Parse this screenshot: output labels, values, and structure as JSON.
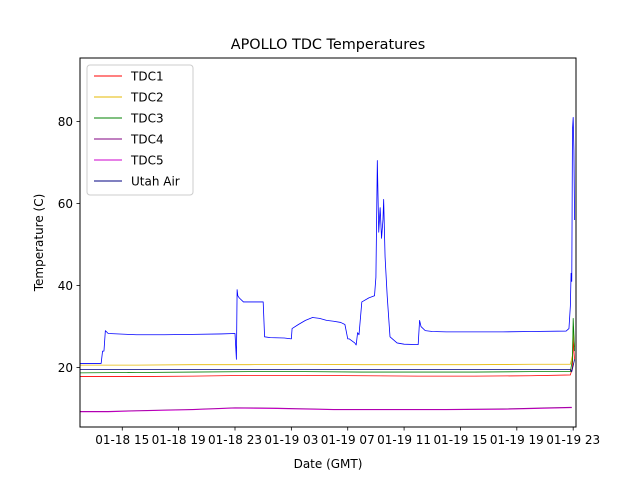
{
  "chart_data": {
    "type": "line",
    "title": "APOLLO TDC Temperatures",
    "xlabel": "Date (GMT)",
    "ylabel": "Temperature (C)",
    "xlim": [
      12.0,
      47.2
    ],
    "ylim": [
      5.5,
      95.5
    ],
    "x_units": "hours since 01-18 00:00 GMT",
    "x_ticks": [
      {
        "value": 15,
        "label": "01-18 15"
      },
      {
        "value": 19,
        "label": "01-18 19"
      },
      {
        "value": 23,
        "label": "01-18 23"
      },
      {
        "value": 27,
        "label": "01-19 03"
      },
      {
        "value": 31,
        "label": "01-19 07"
      },
      {
        "value": 35,
        "label": "01-19 11"
      },
      {
        "value": 39,
        "label": "01-19 15"
      },
      {
        "value": 43,
        "label": "01-19 19"
      },
      {
        "value": 47,
        "label": "01-19 23"
      }
    ],
    "y_ticks": [
      {
        "value": 20,
        "label": "20"
      },
      {
        "value": 40,
        "label": "40"
      },
      {
        "value": 60,
        "label": "60"
      },
      {
        "value": 80,
        "label": "80"
      }
    ],
    "legend_position": "top-left",
    "series": [
      {
        "name": "TDC1",
        "color": "#ff0000",
        "x": [
          12.0,
          16.0,
          20.0,
          24.0,
          28.0,
          32.0,
          36.0,
          40.0,
          44.0,
          46.8,
          46.95,
          47.0,
          47.05,
          47.1
        ],
        "y": [
          17.8,
          17.8,
          17.9,
          18.1,
          18.1,
          18.0,
          17.9,
          17.9,
          18.0,
          18.2,
          20.0,
          28.0,
          24.0,
          22.0
        ]
      },
      {
        "name": "TDC2",
        "color": "#e6b800",
        "x": [
          12.0,
          16.0,
          20.0,
          24.0,
          28.0,
          32.0,
          36.0,
          40.0,
          44.0,
          46.8,
          46.95,
          47.0,
          47.05,
          47.1
        ],
        "y": [
          20.6,
          20.6,
          20.7,
          20.7,
          20.8,
          20.7,
          20.7,
          20.7,
          20.8,
          20.8,
          23.0,
          30.0,
          27.0,
          25.0
        ]
      },
      {
        "name": "TDC3",
        "color": "#008000",
        "x": [
          12.0,
          16.0,
          20.0,
          24.0,
          28.0,
          32.0,
          36.0,
          40.0,
          44.0,
          46.8,
          46.95,
          47.0,
          47.05,
          47.1
        ],
        "y": [
          18.7,
          18.8,
          18.9,
          19.0,
          19.0,
          18.9,
          18.9,
          18.9,
          19.0,
          19.0,
          22.0,
          32.0,
          28.0,
          24.0
        ]
      },
      {
        "name": "TDC4",
        "color": "#800080",
        "x": [
          12.0,
          14.0,
          16.0,
          20.0,
          23.0,
          26.0,
          30.0,
          34.0,
          38.0,
          42.0,
          46.8,
          46.9
        ],
        "y": [
          9.3,
          9.3,
          9.5,
          9.8,
          10.2,
          10.1,
          9.8,
          9.8,
          9.8,
          9.9,
          10.3,
          10.3
        ]
      },
      {
        "name": "TDC5",
        "color": "#cc00cc",
        "x": [
          12.0,
          14.0,
          16.0,
          20.0,
          23.0,
          26.0,
          30.0,
          34.0,
          38.0,
          42.0,
          46.8,
          46.9
        ],
        "y": [
          9.2,
          9.2,
          9.4,
          9.7,
          10.1,
          10.0,
          9.7,
          9.7,
          9.7,
          9.8,
          10.2,
          10.2
        ]
      },
      {
        "name": "Utah Air",
        "color": "#000080",
        "x": [
          12.0,
          46.8,
          46.9,
          47.0,
          47.1
        ],
        "y": [
          19.5,
          19.5,
          19.0,
          20.5,
          22.0
        ]
      }
    ],
    "overlay_series": {
      "color": "#0000ff",
      "x": [
        12.0,
        13.5,
        13.6,
        13.7,
        13.8,
        14.0,
        16.0,
        18.0,
        20.0,
        22.0,
        23.0,
        23.1,
        23.15,
        23.2,
        23.3,
        23.6,
        24.0,
        25.0,
        25.1,
        25.5,
        26.5,
        27.0,
        27.05,
        27.5,
        28.0,
        28.5,
        29.0,
        29.5,
        30.0,
        30.5,
        30.8,
        31.0,
        31.1,
        31.5,
        31.6,
        31.7,
        31.8,
        32.0,
        32.5,
        32.9,
        33.0,
        33.1,
        33.2,
        33.3,
        33.4,
        33.5,
        33.55,
        33.65,
        33.8,
        34.0,
        34.5,
        35.0,
        36.0,
        36.1,
        36.2,
        36.5,
        37.0,
        38.0,
        40.0,
        42.0,
        44.0,
        46.5,
        46.7,
        46.8,
        46.85,
        46.9,
        46.95,
        47.0,
        47.05,
        47.1
      ],
      "y": [
        21.0,
        21.0,
        24.0,
        24.0,
        29.0,
        28.3,
        28.0,
        28.0,
        28.1,
        28.2,
        28.3,
        22.0,
        39.0,
        37.5,
        37.0,
        36.0,
        36.0,
        36.0,
        27.5,
        27.3,
        27.2,
        27.0,
        29.5,
        30.5,
        31.5,
        32.2,
        32.0,
        31.5,
        31.3,
        31.0,
        30.5,
        27.0,
        27.0,
        26.0,
        25.5,
        28.5,
        28.0,
        36.0,
        37.0,
        37.5,
        42.0,
        70.5,
        53.0,
        59.0,
        51.5,
        56.0,
        61.0,
        47.0,
        37.5,
        27.5,
        26.0,
        25.7,
        25.6,
        31.5,
        30.0,
        29.0,
        28.8,
        28.7,
        28.7,
        28.7,
        28.8,
        28.9,
        29.5,
        35.0,
        43.0,
        41.0,
        78.0,
        81.0,
        73.0,
        56.0
      ]
    }
  }
}
